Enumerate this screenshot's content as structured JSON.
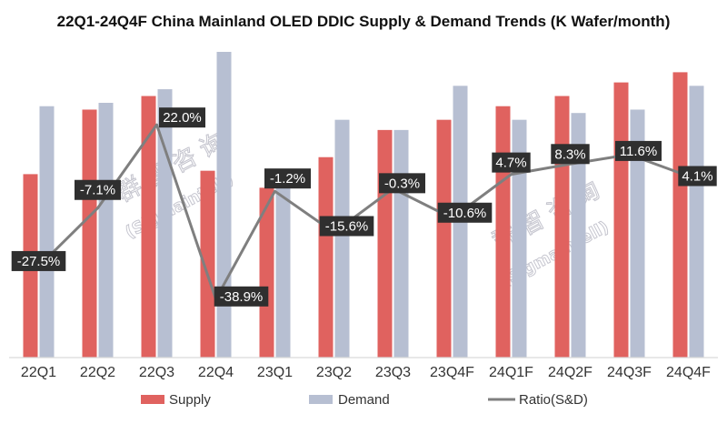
{
  "chart_data": {
    "type": "bar",
    "title": "22Q1-24Q4F China Mainland OLED DDIC Supply & Demand Trends (K Wafer/month)",
    "categories": [
      "22Q1",
      "22Q2",
      "22Q3",
      "22Q4",
      "23Q1",
      "23Q2",
      "23Q3",
      "23Q4F",
      "24Q1F",
      "24Q2F",
      "24Q3F",
      "24Q4F"
    ],
    "series": [
      {
        "name": "Supply",
        "type": "bar",
        "color": "#e0625f",
        "values": [
          54,
          73,
          77,
          55,
          50,
          59,
          67,
          70,
          74,
          77,
          81,
          84
        ]
      },
      {
        "name": "Demand",
        "type": "bar",
        "color": "#b7bfd2",
        "values": [
          74,
          75,
          79,
          90,
          51,
          70,
          67,
          80,
          70,
          72,
          73,
          80
        ]
      },
      {
        "name": "Ratio(S&D)",
        "type": "line",
        "color": "#7f7f7f",
        "axis": "secondary",
        "values": [
          -27.5,
          -7.1,
          22.0,
          -38.9,
          -1.2,
          -15.6,
          -0.3,
          -10.6,
          4.7,
          8.3,
          11.6,
          4.1
        ],
        "labels": [
          "-27.5%",
          "-7.1%",
          "22.0%",
          "-38.9%",
          "-1.2%",
          "-15.6%",
          "-0.3%",
          "-10.6%",
          "4.7%",
          "8.3%",
          "11.6%",
          "4.1%"
        ]
      }
    ],
    "ylim": [
      0,
      90
    ],
    "y2lim": [
      -45,
      30
    ],
    "xlabel": "",
    "ylabel": "",
    "grid": false,
    "legend_position": "bottom"
  },
  "watermark": {
    "chinese": "群 智 咨 询",
    "latin": "(Sigmaintell)"
  }
}
